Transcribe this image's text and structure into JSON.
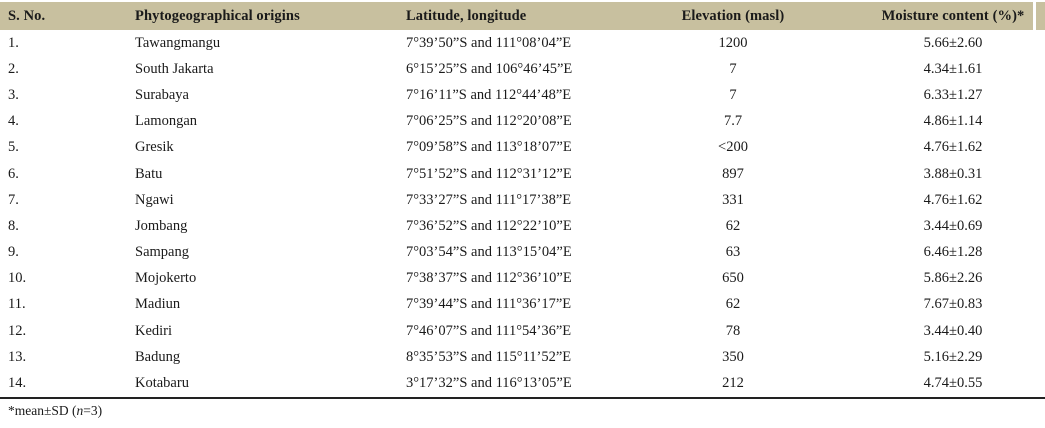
{
  "colors": {
    "header_bg": "#c8c09f",
    "text": "#1a1a1a",
    "bottom_rule": "#222222"
  },
  "table": {
    "columns": [
      "S. No.",
      "Phytogeographical origins",
      "Latitude, longitude",
      "Elevation (masl)",
      "Moisture content (%)*"
    ],
    "rows": [
      [
        "1.",
        "Tawangmangu",
        "7°39’50”S and 111°08’04”E",
        "1200",
        "5.66±2.60"
      ],
      [
        "2.",
        "South Jakarta",
        "6°15’25”S and 106°46’45”E",
        "7",
        "4.34±1.61"
      ],
      [
        "3.",
        "Surabaya",
        "7°16’11”S and 112°44’48”E",
        "7",
        "6.33±1.27"
      ],
      [
        "4.",
        "Lamongan",
        "7°06’25”S and 112°20’08”E",
        "7.7",
        "4.86±1.14"
      ],
      [
        "5.",
        "Gresik",
        "7°09’58”S and 113°18’07”E",
        "<200",
        "4.76±1.62"
      ],
      [
        "6.",
        "Batu",
        "7°51’52”S and 112°31’12”E",
        "897",
        "3.88±0.31"
      ],
      [
        "7.",
        "Ngawi",
        "7°33’27”S and 111°17’38”E",
        "331",
        "4.76±1.62"
      ],
      [
        "8.",
        "Jombang",
        "7°36’52”S and 112°22’10”E",
        "62",
        "3.44±0.69"
      ],
      [
        "9.",
        "Sampang",
        "7°03’54”S and 113°15’04”E",
        "63",
        "6.46±1.28"
      ],
      [
        "10.",
        "Mojokerto",
        "7°38’37”S and 112°36’10”E",
        "650",
        "5.86±2.26"
      ],
      [
        "11.",
        "Madiun",
        "7°39’44”S and 111°36’17”E",
        "62",
        "7.67±0.83"
      ],
      [
        "12.",
        "Kediri",
        "7°46’07”S and 111°54’36”E",
        "78",
        "3.44±0.40"
      ],
      [
        "13.",
        "Badung",
        "8°35’53”S and 115°11’52”E",
        "350",
        "5.16±2.29"
      ],
      [
        "14.",
        "Kotabaru",
        "3°17’32”S and 116°13’05”E",
        "212",
        "4.74±0.55"
      ]
    ],
    "footnote": {
      "prefix": "*mean±SD (",
      "italic_var": "n",
      "suffix": "=3)"
    }
  }
}
